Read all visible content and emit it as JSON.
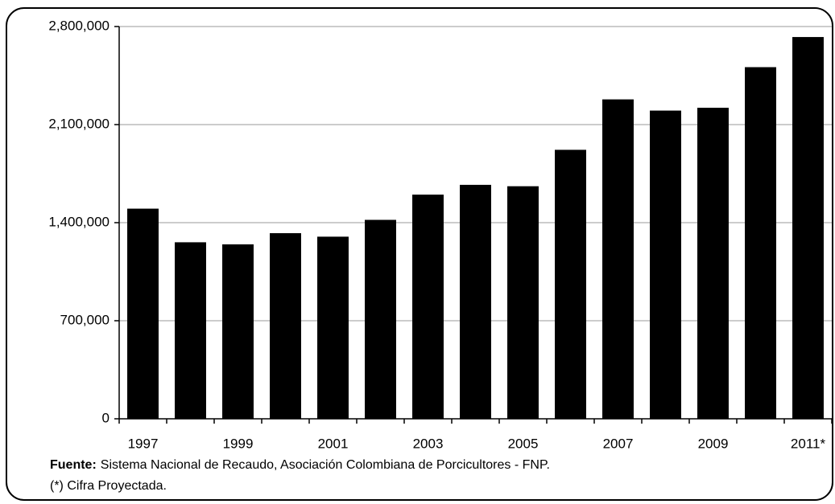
{
  "chart_data": {
    "type": "bar",
    "categories": [
      "1997",
      null,
      "1999",
      null,
      "2001",
      null,
      "2003",
      null,
      "2005",
      null,
      "2007",
      null,
      "2009",
      null,
      "2011*"
    ],
    "values": [
      1500000,
      1260000,
      1245000,
      1325000,
      1300000,
      1420000,
      1600000,
      1670000,
      1660000,
      1920000,
      2280000,
      2200000,
      2220000,
      2510000,
      2725000
    ],
    "color": "#000000",
    "ylim": [
      0,
      2800000
    ],
    "yticks": [
      0,
      {
        "value": 700000,
        "label": "700,000"
      },
      {
        "value": 1400000,
        "label": "1,400,000"
      },
      {
        "value": 2100000,
        "label": "2,100,000"
      },
      {
        "value": 2800000,
        "label": "2,800,000"
      }
    ],
    "grid": true,
    "source_label": "Fuente:",
    "source": "Sistema Nacional de Recaudo, Asociación Colombiana de Porcicultores - FNP.",
    "note": "(*) Cifra Proyectada."
  }
}
